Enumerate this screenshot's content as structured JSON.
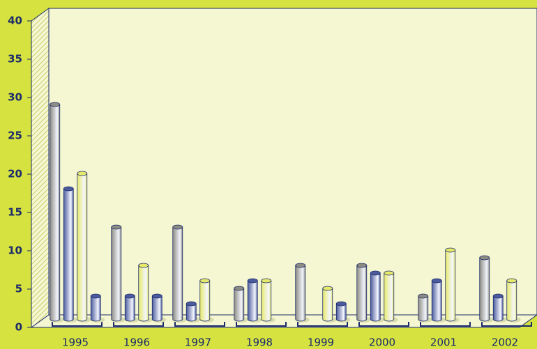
{
  "chart_data": {
    "type": "bar",
    "categories": [
      "1995",
      "1996",
      "1997",
      "1998",
      "1999",
      "2000",
      "2001",
      "2002"
    ],
    "series": [
      {
        "color": "#8c8c82",
        "values": [
          28,
          12,
          12,
          4,
          7,
          7,
          3,
          8
        ]
      },
      {
        "color": "#4b5b9c",
        "values": [
          17,
          3,
          2,
          5,
          null,
          6,
          5,
          3
        ]
      },
      {
        "color": "#e6ea6a",
        "values": [
          19,
          7,
          5,
          5,
          4,
          6,
          9,
          5
        ]
      },
      {
        "color": "#4b5b9c",
        "values": [
          3,
          3,
          null,
          null,
          2,
          null,
          null,
          null
        ]
      }
    ],
    "ylim": [
      0,
      40
    ],
    "yticks": [
      0,
      5,
      10,
      15,
      20,
      25,
      30,
      35,
      40
    ]
  }
}
